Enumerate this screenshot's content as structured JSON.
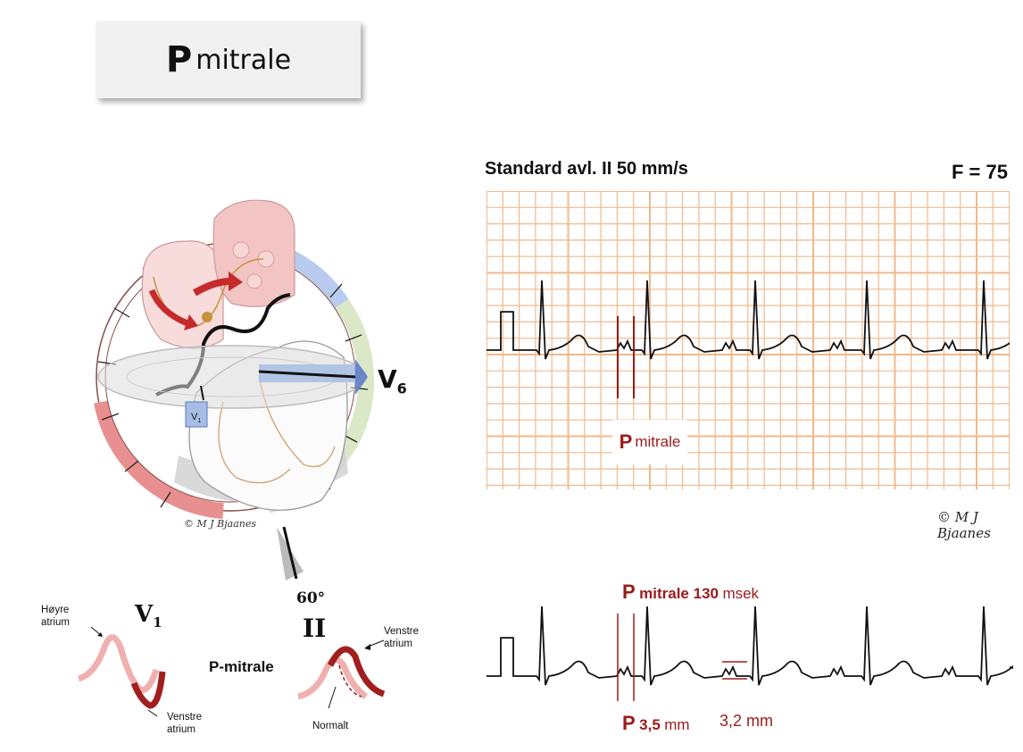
{
  "title": {
    "p": "P",
    "word": "mitrale"
  },
  "ecg_top": {
    "title": "Standard avl. II  50 mm/s",
    "rate": "F = 75",
    "p_label": {
      "p": "P",
      "word": "mitrale"
    }
  },
  "signature": "© M J Bjaanes",
  "ecg_bottom": {
    "top_label": {
      "p": "P",
      "word": "mitrale 130",
      "unit": "msek"
    },
    "left_measure": {
      "p": "P",
      "value": "3,5",
      "unit": "mm"
    },
    "right_measure": "3,2 mm"
  },
  "heart": {
    "v6": "V",
    "v6_sub": "6",
    "v1_box": "V",
    "v1_box_sub": "1",
    "angle": "60°",
    "signature": "© M J Bjaanes"
  },
  "waves": {
    "v1_label": "V",
    "v1_sub": "1",
    "ii_label": "II",
    "center_label": "P-mitrale",
    "hoyre_atrium": [
      "Høyre",
      "atrium"
    ],
    "venstre_atrium_v1": [
      "Venstre",
      "atrium"
    ],
    "venstre_atrium_ii": [
      "Venstre",
      "atrium"
    ],
    "normalt": "Normalt"
  },
  "colors": {
    "grid": "#f0b98c",
    "accent_red": "#9c1a1a",
    "ring_red": "#e07a7a",
    "ring_blue": "#9fb8e0",
    "ring_green": "#c9dcb0"
  }
}
